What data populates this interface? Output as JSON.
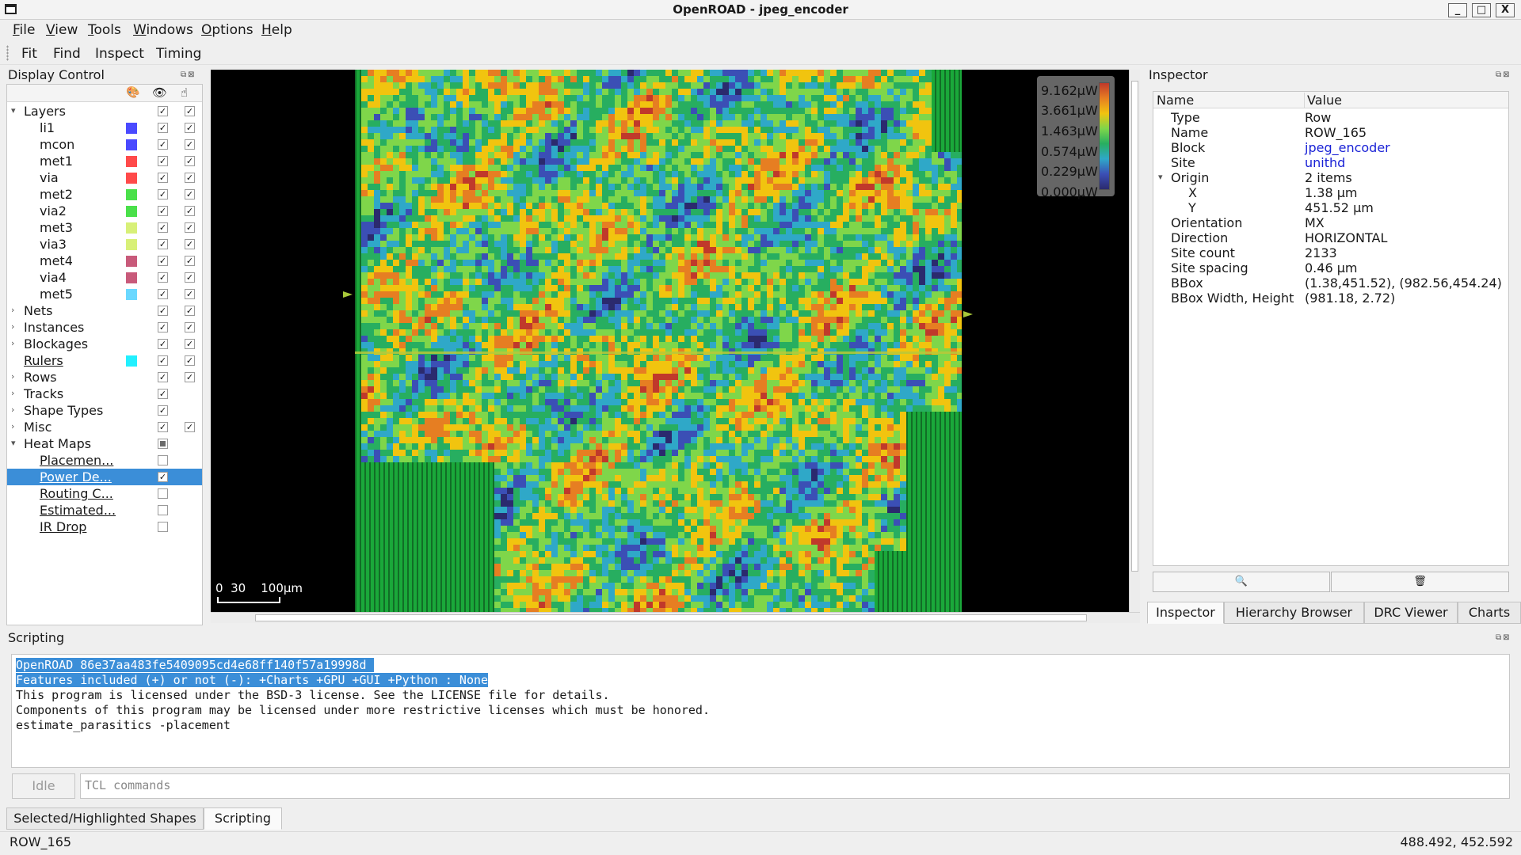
{
  "window": {
    "title": "OpenROAD - jpeg_encoder",
    "minimize": "_",
    "maximize": "□",
    "close": "X"
  },
  "menu": [
    "File",
    "View",
    "Tools",
    "Windows",
    "Options",
    "Help"
  ],
  "toolbar": [
    "Fit",
    "Find",
    "Inspect",
    "Timing"
  ],
  "display_control": {
    "title": "Display Control",
    "rows": [
      {
        "label": "Layers",
        "arrow": "▾",
        "indent": 0,
        "swatch": "",
        "vis": "✓",
        "sel": "✓"
      },
      {
        "label": "li1",
        "indent": 1,
        "swatch": "#4a4aff",
        "vis": "✓",
        "sel": "✓"
      },
      {
        "label": "mcon",
        "indent": 1,
        "swatch": "#4a4aff",
        "vis": "✓",
        "sel": "✓"
      },
      {
        "label": "met1",
        "indent": 1,
        "swatch": "#ff4a4a",
        "vis": "✓",
        "sel": "✓"
      },
      {
        "label": "via",
        "indent": 1,
        "swatch": "#ff4a4a",
        "vis": "✓",
        "sel": "✓"
      },
      {
        "label": "met2",
        "indent": 1,
        "swatch": "#4ae04a",
        "vis": "✓",
        "sel": "✓"
      },
      {
        "label": "via2",
        "indent": 1,
        "swatch": "#4ae04a",
        "vis": "✓",
        "sel": "✓"
      },
      {
        "label": "met3",
        "indent": 1,
        "swatch": "#d8f078",
        "vis": "✓",
        "sel": "✓"
      },
      {
        "label": "via3",
        "indent": 1,
        "swatch": "#d8f078",
        "vis": "✓",
        "sel": "✓"
      },
      {
        "label": "met4",
        "indent": 1,
        "swatch": "#c85a7a",
        "vis": "✓",
        "sel": "✓"
      },
      {
        "label": "via4",
        "indent": 1,
        "swatch": "#c85a7a",
        "vis": "✓",
        "sel": "✓"
      },
      {
        "label": "met5",
        "indent": 1,
        "swatch": "#6ad8ff",
        "vis": "✓",
        "sel": "✓"
      },
      {
        "label": "Nets",
        "arrow": "›",
        "indent": 0,
        "swatch": "",
        "vis": "✓",
        "sel": "✓"
      },
      {
        "label": "Instances",
        "arrow": "›",
        "indent": 0,
        "swatch": "",
        "vis": "✓",
        "sel": "✓"
      },
      {
        "label": "Blockages",
        "arrow": "›",
        "indent": 0,
        "swatch": "",
        "vis": "✓",
        "sel": "✓"
      },
      {
        "label": "Rulers",
        "indent": 0,
        "link": true,
        "swatch": "#22f0ff",
        "vis": "✓",
        "sel": "✓"
      },
      {
        "label": "Rows",
        "arrow": "›",
        "indent": 0,
        "swatch": "",
        "vis": "✓",
        "sel": "✓"
      },
      {
        "label": "Tracks",
        "arrow": "›",
        "indent": 0,
        "swatch": "",
        "vis": "✓"
      },
      {
        "label": "Shape Types",
        "arrow": "›",
        "indent": 0,
        "swatch": "",
        "vis": "✓"
      },
      {
        "label": "Misc",
        "arrow": "›",
        "indent": 0,
        "swatch": "",
        "vis": "✓",
        "sel": "✓"
      },
      {
        "label": "Heat Maps",
        "arrow": "▾",
        "indent": 0,
        "swatch": "",
        "vis": "partial"
      },
      {
        "label": "Placemen...",
        "indent": 1,
        "link": true,
        "swatch": "",
        "vis": ""
      },
      {
        "label": "Power De...",
        "indent": 1,
        "link": true,
        "swatch": "",
        "vis": "✓",
        "selected": true
      },
      {
        "label": "Routing C...",
        "indent": 1,
        "link": true,
        "swatch": "",
        "vis": ""
      },
      {
        "label": "Estimated...",
        "indent": 1,
        "link": true,
        "swatch": "",
        "vis": ""
      },
      {
        "label": "IR Drop",
        "indent": 1,
        "link": true,
        "swatch": "",
        "vis": ""
      }
    ]
  },
  "canvas": {
    "legend": [
      "9.162μW",
      "3.661μW",
      "1.463μW",
      "0.574μW",
      "0.229μW",
      "0.000μW"
    ],
    "scale_label": "0  30    100μm"
  },
  "inspector": {
    "title": "Inspector",
    "col_name": "Name",
    "col_value": "Value",
    "props": [
      {
        "k": "Type",
        "v": "Row"
      },
      {
        "k": "Name",
        "v": "ROW_165"
      },
      {
        "k": "Block",
        "v": "jpeg_encoder",
        "link": true
      },
      {
        "k": "Site",
        "v": "unithd",
        "link": true
      },
      {
        "k": "Origin",
        "v": "2 items",
        "arrow": "▾"
      },
      {
        "k": "X",
        "v": "1.38 μm",
        "sub": true
      },
      {
        "k": "Y",
        "v": "451.52 μm",
        "sub": true
      },
      {
        "k": "Orientation",
        "v": "MX"
      },
      {
        "k": "Direction",
        "v": "HORIZONTAL"
      },
      {
        "k": "Site count",
        "v": "2133"
      },
      {
        "k": "Site spacing",
        "v": "0.46 μm"
      },
      {
        "k": "BBox",
        "v": "(1.38,451.52), (982.56,454.24)"
      },
      {
        "k": "BBox Width, Height",
        "v": "(981.18, 2.72)"
      }
    ],
    "zoom_icon": "🔍",
    "delete_icon": "🗑"
  },
  "right_tabs": [
    "Inspector",
    "Hierarchy Browser",
    "DRC Viewer",
    "Charts"
  ],
  "scripting": {
    "title": "Scripting",
    "lines": [
      {
        "text": "OpenROAD 86e37aa483fe5409095cd4e68ff140f57a19998d ",
        "hl": true
      },
      {
        "text": "Features included (+) or not (-): +Charts +GPU +GUI +Python : None",
        "hl": true
      },
      {
        "text": "This program is licensed under the BSD-3 license. See the LICENSE file for details."
      },
      {
        "text": "Components of this program may be licensed under more restrictive licenses which must be honored."
      },
      {
        "text": "estimate_parasitics -placement"
      }
    ],
    "idle": "Idle",
    "input_placeholder": "TCL commands"
  },
  "bottom_tabs": [
    "Selected/Highlighted Shapes",
    "Scripting"
  ],
  "status": {
    "left": "ROW_165",
    "right": "488.492, 452.592"
  }
}
